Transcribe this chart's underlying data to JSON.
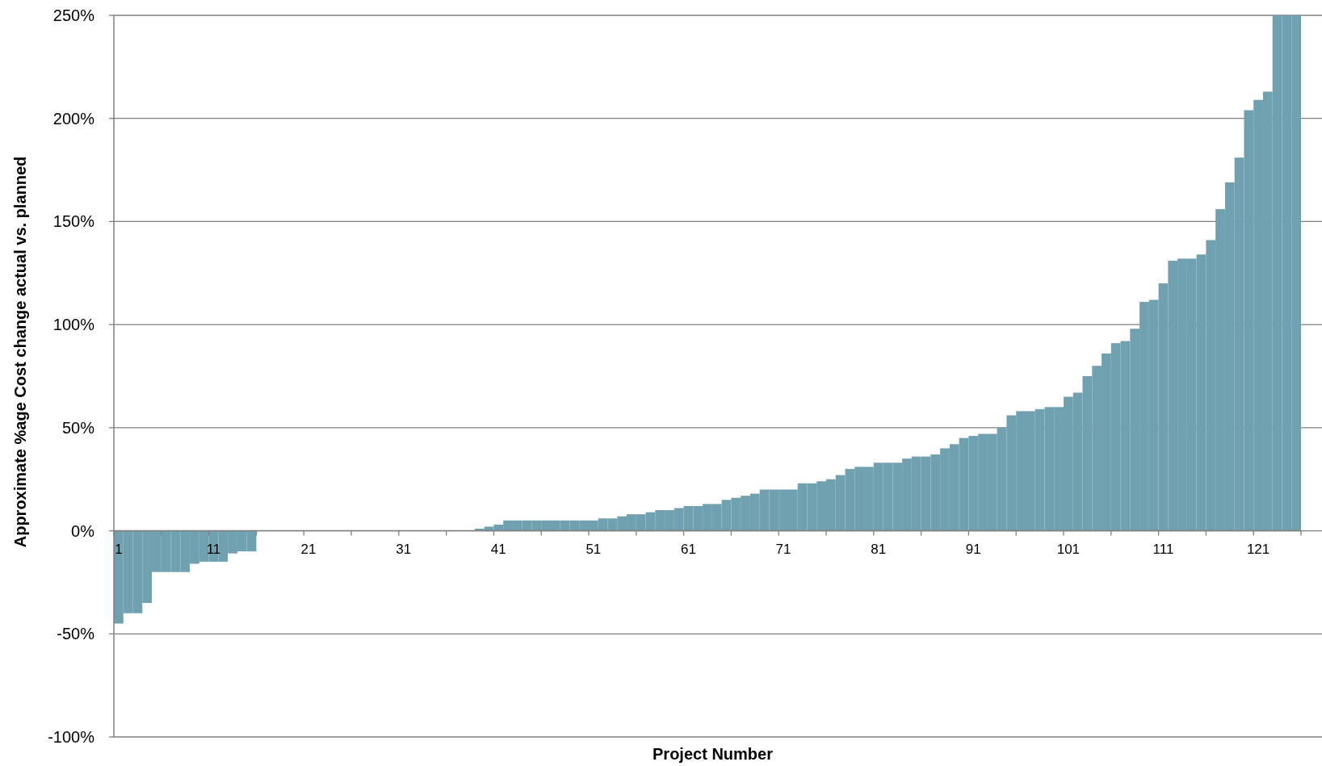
{
  "chart_data": {
    "type": "bar",
    "xlabel": "Project Number",
    "ylabel": "Approximate %age Cost change actual vs. planned",
    "categories": [
      "1",
      null,
      null,
      null,
      null,
      null,
      null,
      null,
      null,
      null,
      "11",
      null,
      null,
      null,
      null,
      null,
      null,
      null,
      null,
      null,
      "21",
      null,
      null,
      null,
      null,
      null,
      null,
      null,
      null,
      null,
      "31",
      null,
      null,
      null,
      null,
      null,
      null,
      null,
      null,
      null,
      "41",
      null,
      null,
      null,
      null,
      null,
      null,
      null,
      null,
      null,
      "51",
      null,
      null,
      null,
      null,
      null,
      null,
      null,
      null,
      null,
      "61",
      null,
      null,
      null,
      null,
      null,
      null,
      null,
      null,
      null,
      "71",
      null,
      null,
      null,
      null,
      null,
      null,
      null,
      null,
      null,
      "81",
      null,
      null,
      null,
      null,
      null,
      null,
      null,
      null,
      null,
      "91",
      null,
      null,
      null,
      null,
      null,
      null,
      null,
      null,
      null,
      "101",
      null,
      null,
      null,
      null,
      null,
      null,
      null,
      null,
      null,
      "111",
      null,
      null,
      null,
      null,
      null,
      null,
      null,
      null,
      null,
      "121",
      null,
      null,
      null,
      null
    ],
    "values": [
      -45,
      -40,
      -40,
      -35,
      -20,
      -20,
      -20,
      -20,
      -16,
      -15,
      -15,
      -15,
      -11,
      -10,
      -10,
      0,
      0,
      0,
      0,
      0,
      0,
      0,
      0,
      0,
      0,
      0,
      0,
      0,
      0,
      0,
      0,
      0,
      0,
      0,
      0,
      0,
      0,
      0,
      1,
      2,
      3,
      5,
      5,
      5,
      5,
      5,
      5,
      5,
      5,
      5,
      5,
      6,
      6,
      7,
      8,
      8,
      9,
      10,
      10,
      11,
      12,
      12,
      13,
      13,
      15,
      16,
      17,
      18,
      20,
      20,
      20,
      20,
      23,
      23,
      24,
      25,
      27,
      30,
      31,
      31,
      33,
      33,
      33,
      35,
      36,
      36,
      37,
      40,
      42,
      45,
      46,
      47,
      47,
      50,
      56,
      58,
      58,
      59,
      60,
      60,
      65,
      67,
      75,
      80,
      86,
      91,
      92,
      98,
      111,
      112,
      120,
      131,
      132,
      132,
      134,
      141,
      156,
      169,
      181,
      204,
      209,
      213,
      250,
      250,
      250
    ],
    "color": "#6fa1b0",
    "ylim": [
      -100,
      250
    ],
    "yticks": [
      {
        "value": -100,
        "label": "-100%"
      },
      {
        "value": -50,
        "label": "-50%"
      },
      {
        "value": 0,
        "label": "0%"
      },
      {
        "value": 50,
        "label": "50%"
      },
      {
        "value": 100,
        "label": "100%"
      },
      {
        "value": 150,
        "label": "150%"
      },
      {
        "value": 200,
        "label": "200%"
      },
      {
        "value": 250,
        "label": "250%"
      }
    ],
    "grid": "y"
  }
}
